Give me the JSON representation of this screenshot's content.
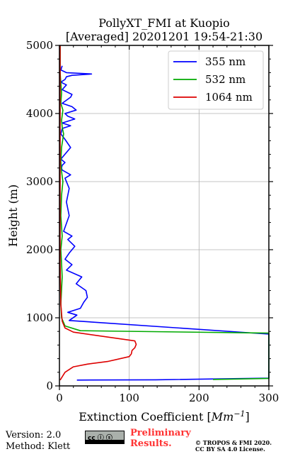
{
  "chart_data": {
    "type": "line",
    "title_line1": "PollyXT_FMI at Kuopio",
    "title_line2": "[Averaged] 20201201 19:54-21:30",
    "xlabel": "Extinction Coefficient [",
    "xlabel_unit": "Mm",
    "xlabel_exp": "−1",
    "xlabel_close": "]",
    "ylabel": "Height (m)",
    "xlim": [
      0,
      300
    ],
    "ylim": [
      0,
      5000
    ],
    "xticks": [
      0,
      100,
      200,
      300
    ],
    "yticks": [
      0,
      1000,
      2000,
      3000,
      4000,
      5000
    ],
    "grid": true,
    "legend_position": "top-right",
    "series": [
      {
        "name": "355 nm",
        "color": "#0000ff",
        "x": [
          25,
          138,
          300,
          300,
          14,
          25,
          12,
          30,
          35,
          40,
          38,
          24,
          32,
          10,
          18,
          8,
          14,
          22,
          12,
          18,
          6,
          14,
          10,
          14,
          8,
          16,
          4,
          3,
          4,
          8,
          2,
          16,
          8,
          2,
          4,
          16,
          4,
          22,
          12,
          8,
          24,
          18,
          4,
          16,
          18,
          4,
          10,
          2,
          8,
          10,
          18,
          46,
          10,
          2,
          4
        ],
        "y": [
          85,
          90,
          115,
          760,
          960,
          1040,
          1080,
          1140,
          1230,
          1300,
          1400,
          1500,
          1600,
          1700,
          1780,
          1860,
          1950,
          2050,
          2150,
          2200,
          2270,
          2500,
          2700,
          2900,
          3050,
          3100,
          3170,
          3200,
          3240,
          3280,
          3330,
          3500,
          3620,
          3700,
          3780,
          3820,
          3860,
          3920,
          3960,
          4000,
          4050,
          4100,
          4150,
          4240,
          4280,
          4350,
          4420,
          4460,
          4500,
          4540,
          4560,
          4580,
          4600,
          4640,
          4700
        ]
      },
      {
        "name": "532 nm",
        "color": "#00aa00",
        "x": [
          220,
          300,
          300,
          30,
          8,
          3,
          2,
          4,
          3,
          2,
          4,
          2,
          3,
          5,
          3,
          2,
          3,
          6,
          4,
          3,
          5,
          2,
          3,
          1,
          1
        ],
        "y": [
          95,
          110,
          775,
          810,
          880,
          1000,
          1200,
          1600,
          1800,
          2000,
          2200,
          2500,
          2800,
          3000,
          3150,
          3300,
          3500,
          3700,
          3800,
          3900,
          4050,
          4150,
          4300,
          4600,
          5000
        ]
      },
      {
        "name": "1064 nm",
        "color": "#dd0000",
        "x": [
          1,
          8,
          20,
          40,
          70,
          100,
          103,
          104,
          108,
          110,
          108,
          20,
          8,
          4,
          2,
          1,
          1,
          1,
          1,
          1,
          1
        ],
        "y": [
          85,
          200,
          280,
          320,
          360,
          430,
          470,
          520,
          560,
          610,
          660,
          790,
          850,
          950,
          1200,
          1800,
          2500,
          3000,
          4000,
          4700,
          5000
        ]
      }
    ]
  },
  "footer": {
    "version": "Version: 2.0",
    "method": "Method: Klett",
    "cc_badge": "cc ⓘ ⓢ",
    "preliminary_line1": "Preliminary",
    "preliminary_line2": "Results.",
    "copyright_line1": "© TROPOS & FMI 2020.",
    "copyright_line2": "CC BY SA 4.0 License."
  }
}
